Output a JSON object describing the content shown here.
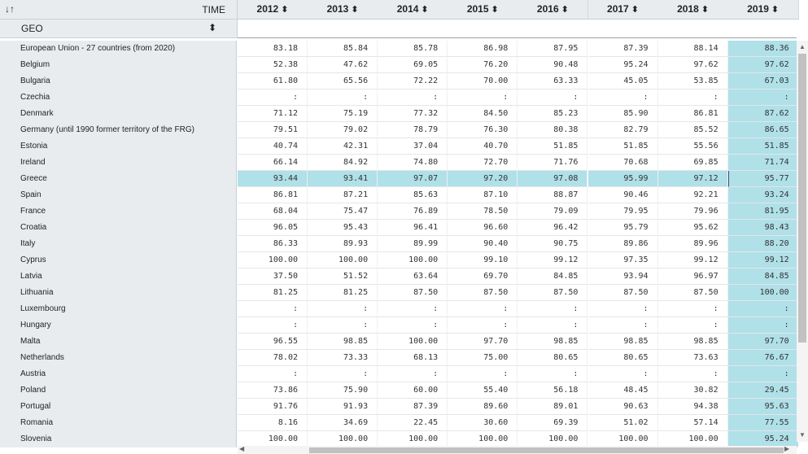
{
  "header": {
    "sort_toggle_icon": "sort-toggle-icon",
    "sort_toggle_glyph": "↓↑",
    "time_label": "TIME",
    "sort_glyph": "⬍",
    "years": [
      "2012",
      "2013",
      "2014",
      "2015",
      "2016",
      "2017",
      "2018",
      "2019"
    ]
  },
  "geo": {
    "label": "GEO",
    "sort_glyph": "⬍"
  },
  "colors": {
    "highlight": "#b0e0e8",
    "header_bg": "#e8ecef"
  },
  "highlight": {
    "row": "Greece",
    "column": "2019"
  },
  "rows": [
    {
      "label": "European Union - 27 countries (from 2020)",
      "values": [
        "83.18",
        "85.84",
        "85.78",
        "86.98",
        "87.95",
        "87.39",
        "88.14",
        "88.36"
      ]
    },
    {
      "label": "Belgium",
      "values": [
        "52.38",
        "47.62",
        "69.05",
        "76.20",
        "90.48",
        "95.24",
        "97.62",
        "97.62"
      ]
    },
    {
      "label": "Bulgaria",
      "values": [
        "61.80",
        "65.56",
        "72.22",
        "70.00",
        "63.33",
        "45.05",
        "53.85",
        "67.03"
      ]
    },
    {
      "label": "Czechia",
      "values": [
        ":",
        ":",
        ":",
        ":",
        ":",
        ":",
        ":",
        ":"
      ]
    },
    {
      "label": "Denmark",
      "values": [
        "71.12",
        "75.19",
        "77.32",
        "84.50",
        "85.23",
        "85.90",
        "86.81",
        "87.62"
      ]
    },
    {
      "label": "Germany (until 1990 former territory of the FRG)",
      "values": [
        "79.51",
        "79.02",
        "78.79",
        "76.30",
        "80.38",
        "82.79",
        "85.52",
        "86.65"
      ]
    },
    {
      "label": "Estonia",
      "values": [
        "40.74",
        "42.31",
        "37.04",
        "40.70",
        "51.85",
        "51.85",
        "55.56",
        "51.85"
      ]
    },
    {
      "label": "Ireland",
      "values": [
        "66.14",
        "84.92",
        "74.80",
        "72.70",
        "71.76",
        "70.68",
        "69.85",
        "71.74"
      ]
    },
    {
      "label": "Greece",
      "values": [
        "93.44",
        "93.41",
        "97.07",
        "97.20",
        "97.08",
        "95.99",
        "97.12",
        "95.77"
      ]
    },
    {
      "label": "Spain",
      "values": [
        "86.81",
        "87.21",
        "85.63",
        "87.10",
        "88.87",
        "90.46",
        "92.21",
        "93.24"
      ]
    },
    {
      "label": "France",
      "values": [
        "68.04",
        "75.47",
        "76.89",
        "78.50",
        "79.09",
        "79.95",
        "79.96",
        "81.95"
      ]
    },
    {
      "label": "Croatia",
      "values": [
        "96.05",
        "95.43",
        "96.41",
        "96.60",
        "96.42",
        "95.79",
        "95.62",
        "98.43"
      ]
    },
    {
      "label": "Italy",
      "values": [
        "86.33",
        "89.93",
        "89.99",
        "90.40",
        "90.75",
        "89.86",
        "89.96",
        "88.20"
      ]
    },
    {
      "label": "Cyprus",
      "values": [
        "100.00",
        "100.00",
        "100.00",
        "99.10",
        "99.12",
        "97.35",
        "99.12",
        "99.12"
      ]
    },
    {
      "label": "Latvia",
      "values": [
        "37.50",
        "51.52",
        "63.64",
        "69.70",
        "84.85",
        "93.94",
        "96.97",
        "84.85"
      ]
    },
    {
      "label": "Lithuania",
      "values": [
        "81.25",
        "81.25",
        "87.50",
        "87.50",
        "87.50",
        "87.50",
        "87.50",
        "100.00"
      ]
    },
    {
      "label": "Luxembourg",
      "values": [
        ":",
        ":",
        ":",
        ":",
        ":",
        ":",
        ":",
        ":"
      ]
    },
    {
      "label": "Hungary",
      "values": [
        ":",
        ":",
        ":",
        ":",
        ":",
        ":",
        ":",
        ":"
      ]
    },
    {
      "label": "Malta",
      "values": [
        "96.55",
        "98.85",
        "100.00",
        "97.70",
        "98.85",
        "98.85",
        "98.85",
        "97.70"
      ]
    },
    {
      "label": "Netherlands",
      "values": [
        "78.02",
        "73.33",
        "68.13",
        "75.00",
        "80.65",
        "80.65",
        "73.63",
        "76.67"
      ]
    },
    {
      "label": "Austria",
      "values": [
        ":",
        ":",
        ":",
        ":",
        ":",
        ":",
        ":",
        ":"
      ]
    },
    {
      "label": "Poland",
      "values": [
        "73.86",
        "75.90",
        "60.00",
        "55.40",
        "56.18",
        "48.45",
        "30.82",
        "29.45"
      ]
    },
    {
      "label": "Portugal",
      "values": [
        "91.76",
        "91.93",
        "87.39",
        "89.60",
        "89.01",
        "90.63",
        "94.38",
        "95.63"
      ]
    },
    {
      "label": "Romania",
      "values": [
        "8.16",
        "34.69",
        "22.45",
        "30.60",
        "69.39",
        "51.02",
        "57.14",
        "77.55"
      ]
    },
    {
      "label": "Slovenia",
      "values": [
        "100.00",
        "100.00",
        "100.00",
        "100.00",
        "100.00",
        "100.00",
        "100.00",
        "95.24"
      ]
    }
  ],
  "scrollbars": {
    "up_glyph": "▲",
    "down_glyph": "▼",
    "left_glyph": "◀",
    "right_glyph": "▶"
  }
}
